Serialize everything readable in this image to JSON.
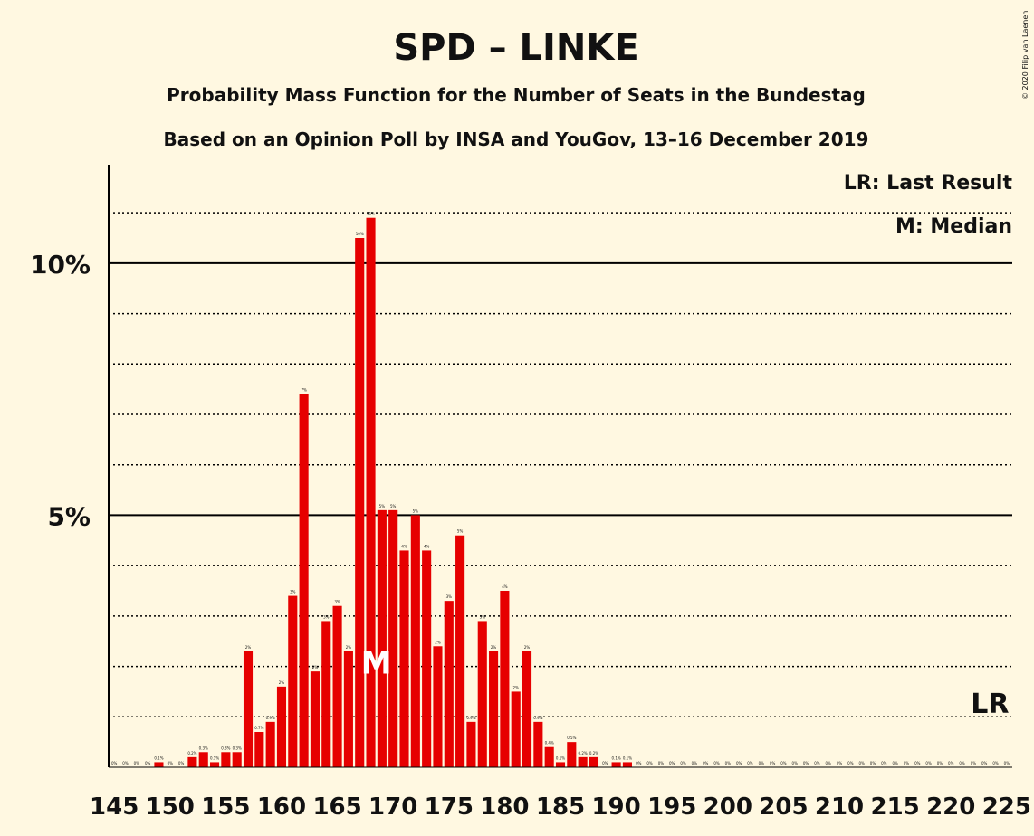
{
  "title": "SPD – LINKE",
  "subtitle1": "Probability Mass Function for the Number of Seats in the Bundestag",
  "subtitle2": "Based on an Opinion Poll by INSA and YouGov, 13–16 December 2019",
  "legend_lr": "LR: Last Result",
  "legend_m": "M: Median",
  "copyright": "© 2020 Filip van Laenen",
  "lr_marker": "LR",
  "median_marker": "M",
  "colors": {
    "bar": "#e60000",
    "background": "#fff8e1",
    "axis": "#000000"
  },
  "chart_data": {
    "type": "bar",
    "x_start": 145,
    "x_end": 225,
    "x": [
      145,
      146,
      147,
      148,
      149,
      150,
      151,
      152,
      153,
      154,
      155,
      156,
      157,
      158,
      159,
      160,
      161,
      162,
      163,
      164,
      165,
      166,
      167,
      168,
      169,
      170,
      171,
      172,
      173,
      174,
      175,
      176,
      177,
      178,
      179,
      180,
      181,
      182,
      183,
      184,
      185,
      186,
      187,
      188,
      189,
      190,
      191,
      192,
      193,
      194,
      195,
      196,
      197,
      198,
      199,
      200,
      201,
      202,
      203,
      204,
      205,
      206,
      207,
      208,
      209,
      210,
      211,
      212,
      213,
      214,
      215,
      216,
      217,
      218,
      219,
      220,
      221,
      222,
      223,
      224,
      225
    ],
    "values": [
      0,
      0,
      0,
      0,
      0.1,
      0,
      0,
      0.2,
      0.3,
      0.1,
      0.3,
      0.3,
      2.3,
      0.7,
      0.9,
      1.6,
      3.4,
      7.4,
      1.9,
      2.9,
      3.2,
      2.3,
      10.5,
      10.9,
      5.1,
      5.1,
      4.3,
      5.0,
      4.3,
      2.4,
      3.3,
      4.6,
      0.9,
      2.9,
      2.3,
      3.5,
      1.5,
      2.3,
      0.9,
      0.4,
      0.1,
      0.5,
      0.2,
      0.2,
      0.0,
      0.1,
      0.1,
      0.0,
      0.0,
      0,
      0,
      0,
      0,
      0,
      0,
      0,
      0,
      0,
      0,
      0,
      0,
      0,
      0,
      0,
      0,
      0,
      0,
      0,
      0,
      0,
      0,
      0,
      0,
      0,
      0,
      0,
      0,
      0,
      0,
      0,
      0
    ],
    "labels": [
      "0%",
      "0%",
      "0%",
      "0%",
      "0.1%",
      "0%",
      "0%",
      "0.2%",
      "0.3%",
      "0.1%",
      "0.3%",
      "0.3%",
      "2%",
      "0.7%",
      "0.9%",
      "2%",
      "3%",
      "7%",
      "2%",
      "3%",
      "3%",
      "2%",
      "10%",
      "11%",
      "5%",
      "5%",
      "4%",
      "5%",
      "4%",
      "2%",
      "3%",
      "5%",
      "0.9%",
      "3%",
      "2%",
      "4%",
      "2%",
      "2%",
      "0.9%",
      "0.4%",
      "0.1%",
      "0.5%",
      "0.2%",
      "0.2%",
      "0%",
      "0.1%",
      "0.1%",
      "0%",
      "0%",
      "0%",
      "0%",
      "0%",
      "0%",
      "0%",
      "0%",
      "0%",
      "0%",
      "0%",
      "0%",
      "0%",
      "0%",
      "0%",
      "0%",
      "0%",
      "0%",
      "0%",
      "0%",
      "0%",
      "0%",
      "0%",
      "0%",
      "0%",
      "0%",
      "0%",
      "0%",
      "0%",
      "0%",
      "0%",
      "0%",
      "0%",
      "0%"
    ],
    "xtick_labels": [
      "145",
      "150",
      "155",
      "160",
      "165",
      "170",
      "175",
      "180",
      "185",
      "190",
      "195",
      "200",
      "205",
      "210",
      "215",
      "220",
      "225"
    ],
    "ytick_labels": [
      "5%",
      "10%"
    ],
    "yticks": [
      5,
      10
    ],
    "ylim": [
      0,
      11.9
    ],
    "median": 169,
    "last_result": 225,
    "grid": true
  }
}
